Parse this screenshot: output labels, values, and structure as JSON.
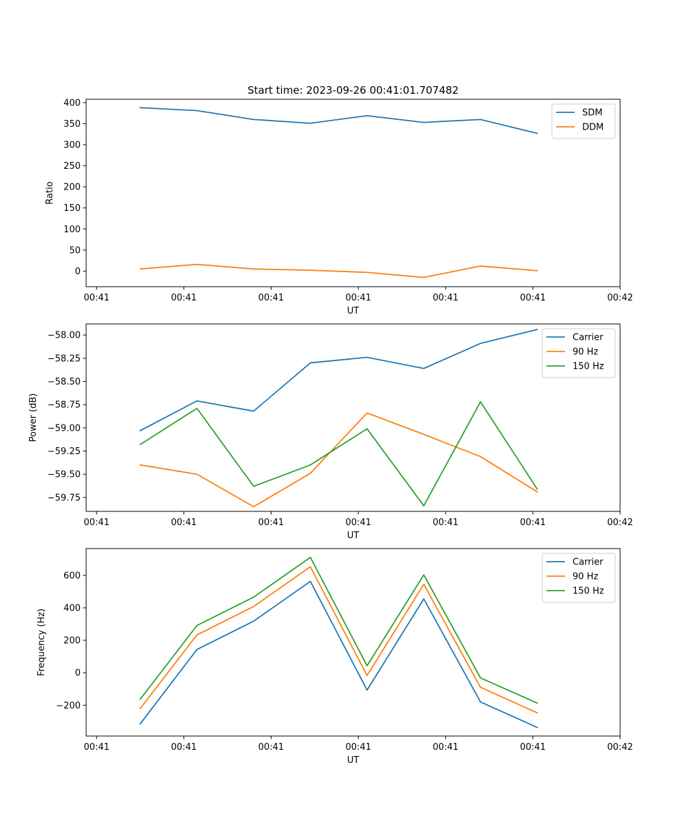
{
  "figure_title": "Start time: 2023-09-26 00:41:01.707482",
  "chart_data": [
    {
      "type": "line",
      "title": "Start time: 2023-09-26 00:41:01.707482",
      "xlabel": "UT",
      "ylabel": "Ratio",
      "x_ticks": [
        0,
        1,
        2,
        3,
        4,
        5,
        6
      ],
      "x_tick_labels": [
        "00:41",
        "00:41",
        "00:41",
        "00:41",
        "00:41",
        "00:41",
        "00:42"
      ],
      "xlim": [
        -0.12,
        6.0
      ],
      "x": [
        0.5,
        1.15,
        1.8,
        2.45,
        3.1,
        3.75,
        4.4,
        5.05
      ],
      "ylim": [
        -37,
        408
      ],
      "y_ticks": [
        0,
        50,
        100,
        150,
        200,
        250,
        300,
        350,
        400
      ],
      "y_tick_labels": [
        "0",
        "50",
        "100",
        "150",
        "200",
        "250",
        "300",
        "350",
        "400"
      ],
      "legend_position": "upper right",
      "series": [
        {
          "name": "SDM",
          "color": "#1f77b4",
          "values": [
            388,
            381,
            360,
            351,
            369,
            353,
            360,
            327
          ]
        },
        {
          "name": "DDM",
          "color": "#ff7f0e",
          "values": [
            5,
            16,
            5,
            2,
            -3,
            -15,
            12,
            1
          ]
        }
      ]
    },
    {
      "type": "line",
      "title": "",
      "xlabel": "UT",
      "ylabel": "Power (dB)",
      "x_ticks": [
        0,
        1,
        2,
        3,
        4,
        5,
        6
      ],
      "x_tick_labels": [
        "00:41",
        "00:41",
        "00:41",
        "00:41",
        "00:41",
        "00:41",
        "00:42"
      ],
      "xlim": [
        -0.12,
        6.0
      ],
      "x": [
        0.5,
        1.15,
        1.8,
        2.45,
        3.1,
        3.75,
        4.4,
        5.05
      ],
      "ylim": [
        -59.9,
        -57.88
      ],
      "y_ticks": [
        -59.75,
        -59.5,
        -59.25,
        -59.0,
        -58.75,
        -58.5,
        -58.25,
        -58.0
      ],
      "y_tick_labels": [
        "−59.75",
        "−59.50",
        "−59.25",
        "−59.00",
        "−58.75",
        "−58.50",
        "−58.25",
        "−58.00"
      ],
      "legend_position": "upper right",
      "series": [
        {
          "name": "Carrier",
          "color": "#1f77b4",
          "values": [
            -59.03,
            -58.71,
            -58.82,
            -58.3,
            -58.24,
            -58.36,
            -58.09,
            -57.94
          ]
        },
        {
          "name": "90 Hz",
          "color": "#ff7f0e",
          "values": [
            -59.4,
            -59.5,
            -59.85,
            -59.49,
            -58.84,
            -59.07,
            -59.31,
            -59.69
          ]
        },
        {
          "name": "150 Hz",
          "color": "#2ca02c",
          "values": [
            -59.18,
            -58.79,
            -59.63,
            -59.4,
            -59.01,
            -59.84,
            -58.72,
            -59.66
          ]
        }
      ]
    },
    {
      "type": "line",
      "title": "",
      "xlabel": "UT",
      "ylabel": "Frequency (Hz)",
      "x_ticks": [
        0,
        1,
        2,
        3,
        4,
        5,
        6
      ],
      "x_tick_labels": [
        "00:41",
        "00:41",
        "00:41",
        "00:41",
        "00:41",
        "00:41",
        "00:42"
      ],
      "xlim": [
        -0.12,
        6.0
      ],
      "x": [
        0.5,
        1.15,
        1.8,
        2.45,
        3.1,
        3.75,
        4.4,
        5.05
      ],
      "ylim": [
        -390,
        765
      ],
      "y_ticks": [
        -200,
        0,
        200,
        400,
        600
      ],
      "y_tick_labels": [
        "−200",
        "0",
        "200",
        "400",
        "600"
      ],
      "legend_position": "upper right",
      "series": [
        {
          "name": "Carrier",
          "color": "#1f77b4",
          "values": [
            -315,
            143,
            318,
            563,
            -107,
            455,
            -180,
            -337
          ]
        },
        {
          "name": "90 Hz",
          "color": "#ff7f0e",
          "values": [
            -220,
            233,
            408,
            653,
            -17,
            545,
            -90,
            -247
          ]
        },
        {
          "name": "150 Hz",
          "color": "#2ca02c",
          "values": [
            -163,
            291,
            466,
            711,
            43,
            603,
            -32,
            -187
          ]
        }
      ]
    }
  ]
}
